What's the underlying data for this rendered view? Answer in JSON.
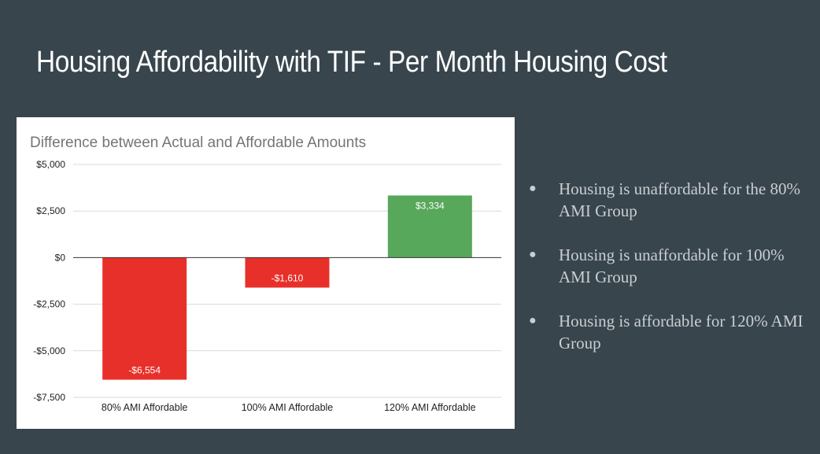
{
  "slide": {
    "title": "Housing Affordability with TIF - Per Month Housing Cost",
    "bullets": [
      "Housing is unaffordable for the 80% AMI Group",
      "Housing is unaffordable for 100% AMI Group",
      "Housing is affordable for 120% AMI Group"
    ]
  },
  "chart_data": {
    "type": "bar",
    "title": "Difference between Actual and Affordable Amounts",
    "categories": [
      "80% AMI Affordable",
      "100% AMI Affordable",
      "120% AMI Affordable"
    ],
    "values": [
      -6554,
      -1610,
      3334
    ],
    "data_labels": [
      "-$6,554",
      "-$1,610",
      "$3,334"
    ],
    "bar_colors": [
      "#e8302a",
      "#e8302a",
      "#57a85a"
    ],
    "ylim": [
      -7500,
      5000
    ],
    "yticks": [
      5000,
      2500,
      0,
      -2500,
      -5000,
      -7500
    ],
    "ytick_labels": [
      "$5,000",
      "$2,500",
      "$0",
      "-$2,500",
      "-$5,000",
      "-$7,500"
    ],
    "xlabel": "",
    "ylabel": "",
    "grid": true,
    "legend": "none"
  }
}
